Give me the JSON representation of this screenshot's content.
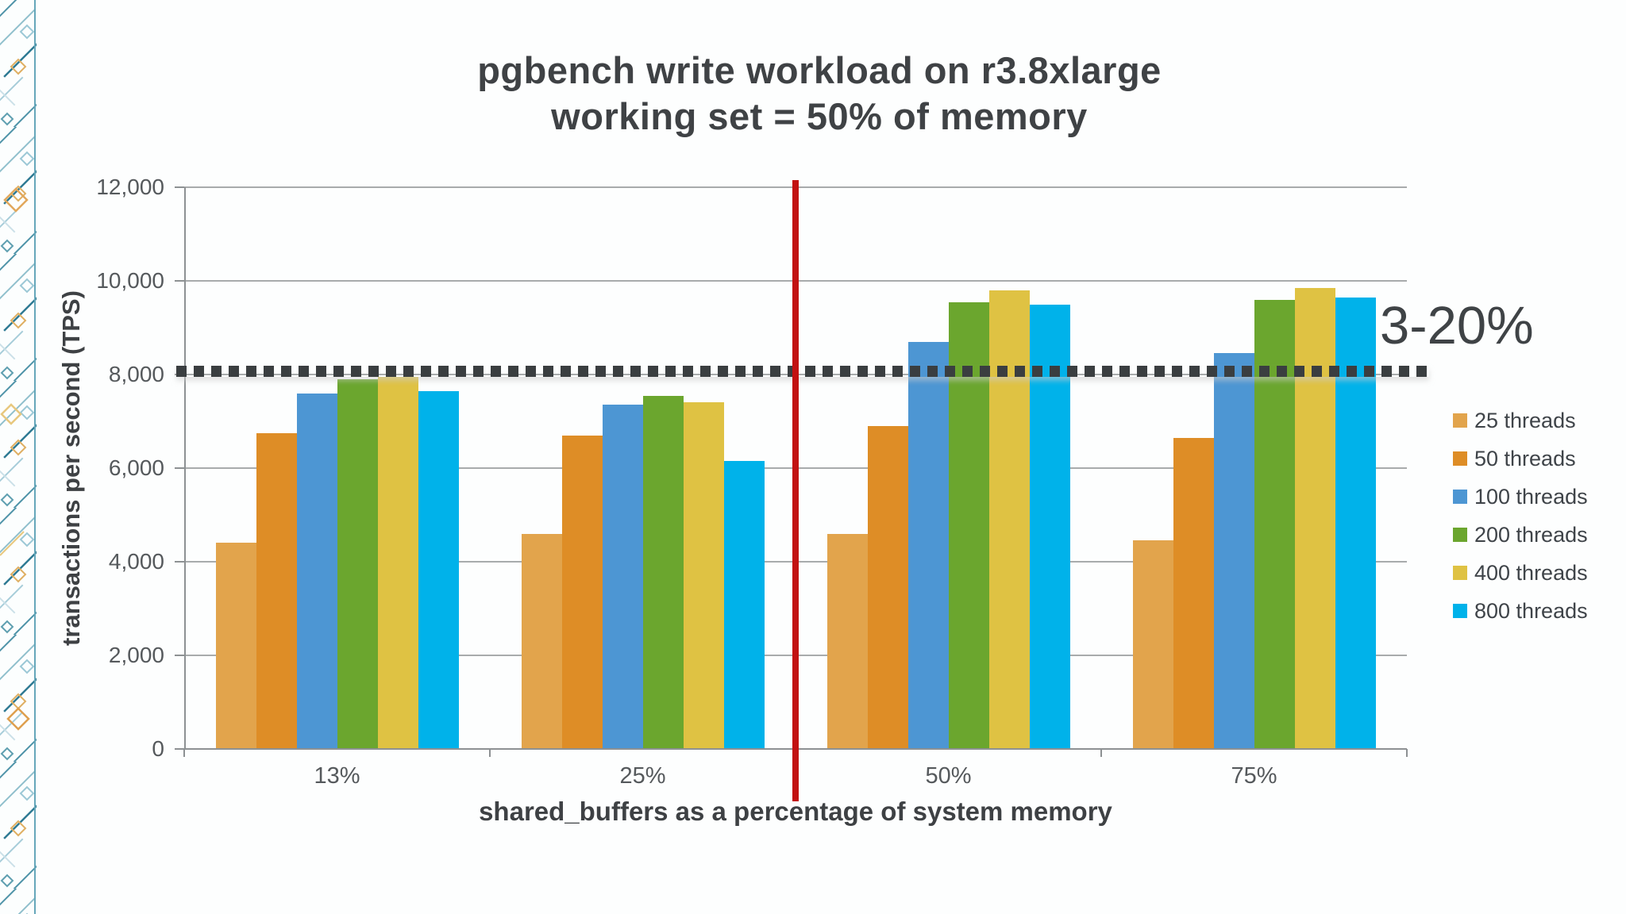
{
  "title": {
    "line1": "pgbench write workload on r3.8xlarge",
    "line2": "working set = 50% of memory"
  },
  "annotation": {
    "text": "3-20%"
  },
  "chart_data": {
    "type": "bar",
    "title": "pgbench write workload on r3.8xlarge — working set = 50% of memory",
    "categories": [
      "13%",
      "25%",
      "50%",
      "75%"
    ],
    "series": [
      {
        "name": "25 threads",
        "color": "#E2A44C",
        "values": [
          4400,
          4600,
          4600,
          4450
        ]
      },
      {
        "name": "50 threads",
        "color": "#DE8D26",
        "values": [
          6750,
          6700,
          6900,
          6650
        ]
      },
      {
        "name": "100 threads",
        "color": "#4D96D3",
        "values": [
          7600,
          7350,
          8700,
          8450
        ]
      },
      {
        "name": "200 threads",
        "color": "#6BA62E",
        "values": [
          7900,
          7550,
          9550,
          9600
        ]
      },
      {
        "name": "400 threads",
        "color": "#DFC243",
        "values": [
          7950,
          7400,
          9800,
          9850
        ]
      },
      {
        "name": "800 threads",
        "color": "#00B2EA",
        "values": [
          7650,
          6150,
          9500,
          9650
        ]
      }
    ],
    "xlabel": "shared_buffers as a percentage of system memory",
    "ylabel": "transactions per second (TPS)",
    "ylim": [
      0,
      12000
    ],
    "ytick_step": 2000,
    "ytick_labels": [
      "0",
      "2,000",
      "4,000",
      "6,000",
      "8,000",
      "10,000",
      "12,000"
    ],
    "grid": true,
    "legend_position": "right",
    "threshold_line": {
      "value": 8070,
      "style": "dotted",
      "color": "#3A3E40"
    },
    "divider_line": {
      "between": [
        "25%",
        "50%"
      ],
      "color": "#C21111"
    }
  }
}
